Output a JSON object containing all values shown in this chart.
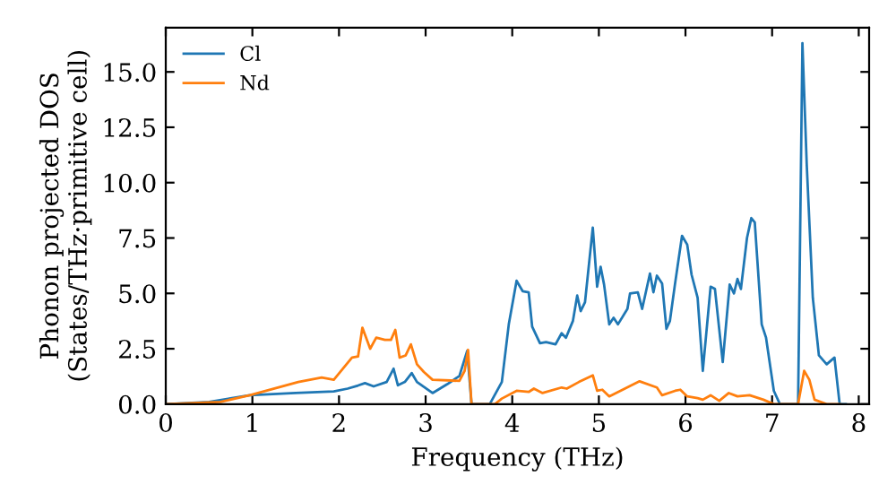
{
  "chart_data": {
    "type": "line",
    "xlabel": "Frequency (THz)",
    "ylabel": "Phonon projected DOS\n(States/THz·primitive cell)",
    "xlim": [
      0,
      8.12
    ],
    "ylim": [
      0,
      17.0
    ],
    "xticks": [
      0,
      1,
      2,
      3,
      4,
      5,
      6,
      7,
      8
    ],
    "yticks": [
      {
        "value": 0,
        "label": "0.0"
      },
      {
        "value": 2.5,
        "label": "2.5"
      },
      {
        "value": 5,
        "label": "5.0"
      },
      {
        "value": 7.5,
        "label": "7.5"
      },
      {
        "value": 10,
        "label": "10.0"
      },
      {
        "value": 12.5,
        "label": "12.5"
      },
      {
        "value": 15,
        "label": "15.0"
      }
    ],
    "legend": "top left",
    "grid": false,
    "series": [
      {
        "name": "Cl",
        "color": "#1f77b4",
        "x": [
          0,
          0.5,
          0.97,
          1.5,
          1.94,
          2.1,
          2.22,
          2.3,
          2.4,
          2.55,
          2.63,
          2.68,
          2.76,
          2.84,
          2.9,
          3.08,
          3.25,
          3.39,
          3.48,
          3.53,
          3.74,
          3.88,
          3.96,
          4.05,
          4.12,
          4.19,
          4.23,
          4.32,
          4.39,
          4.5,
          4.57,
          4.62,
          4.7,
          4.75,
          4.79,
          4.84,
          4.93,
          4.98,
          5.02,
          5.06,
          5.12,
          5.17,
          5.22,
          5.33,
          5.36,
          5.45,
          5.5,
          5.59,
          5.63,
          5.67,
          5.73,
          5.78,
          5.82,
          5.88,
          5.96,
          6.02,
          6.07,
          6.14,
          6.2,
          6.29,
          6.34,
          6.43,
          6.51,
          6.56,
          6.6,
          6.64,
          6.71,
          6.76,
          6.8,
          6.88,
          6.93,
          7.02,
          7.09,
          7.3,
          7.35,
          7.4,
          7.47,
          7.54,
          7.63,
          7.72,
          7.78,
          7.85
        ],
        "values": [
          0,
          0.1,
          0.4,
          0.5,
          0.57,
          0.7,
          0.84,
          0.95,
          0.8,
          1.0,
          1.6,
          0.85,
          1.0,
          1.4,
          1.0,
          0.5,
          0.9,
          1.27,
          2.4,
          0,
          0,
          1.0,
          3.6,
          5.57,
          5.1,
          5.05,
          3.5,
          2.75,
          2.8,
          2.7,
          3.2,
          3.0,
          3.75,
          4.9,
          4.2,
          4.6,
          7.97,
          5.3,
          6.2,
          5.4,
          3.6,
          3.9,
          3.6,
          4.3,
          5.0,
          5.05,
          4.3,
          5.9,
          5.05,
          5.8,
          5.45,
          3.4,
          3.75,
          5.45,
          7.6,
          7.2,
          5.85,
          4.8,
          1.5,
          5.3,
          5.2,
          1.9,
          5.4,
          5.0,
          5.65,
          5.2,
          7.5,
          8.4,
          8.2,
          3.6,
          3.0,
          0.6,
          0,
          0,
          16.3,
          10.8,
          4.8,
          2.2,
          1.8,
          2.1,
          0,
          0
        ]
      },
      {
        "name": "Nd",
        "color": "#ff7f0e",
        "x": [
          0,
          0.63,
          0.97,
          1.53,
          1.8,
          1.94,
          2.15,
          2.22,
          2.27,
          2.36,
          2.43,
          2.53,
          2.6,
          2.65,
          2.7,
          2.77,
          2.83,
          2.9,
          2.98,
          3.08,
          3.39,
          3.45,
          3.49,
          3.53,
          3.8,
          3.88,
          4.05,
          4.19,
          4.25,
          4.35,
          4.57,
          4.63,
          4.77,
          4.93,
          4.98,
          5.04,
          5.12,
          5.47,
          5.67,
          5.73,
          5.88,
          5.94,
          6.02,
          6.14,
          6.2,
          6.29,
          6.39,
          6.5,
          6.6,
          6.74,
          6.9,
          7.02,
          7.3,
          7.37,
          7.43,
          7.49,
          7.63,
          7.78
        ],
        "values": [
          0,
          0.1,
          0.4,
          1.0,
          1.2,
          1.1,
          2.1,
          2.15,
          3.45,
          2.5,
          3.0,
          2.9,
          2.9,
          3.35,
          2.1,
          2.2,
          2.7,
          1.8,
          1.45,
          1.1,
          1.05,
          1.5,
          2.45,
          0,
          0,
          0.25,
          0.6,
          0.55,
          0.7,
          0.5,
          0.75,
          0.7,
          1.0,
          1.3,
          0.6,
          0.65,
          0.35,
          1.03,
          0.75,
          0.4,
          0.6,
          0.65,
          0.35,
          0.27,
          0.2,
          0.4,
          0.15,
          0.5,
          0.35,
          0.4,
          0.2,
          0,
          0,
          1.5,
          1.1,
          0.2,
          0,
          0
        ]
      }
    ]
  }
}
